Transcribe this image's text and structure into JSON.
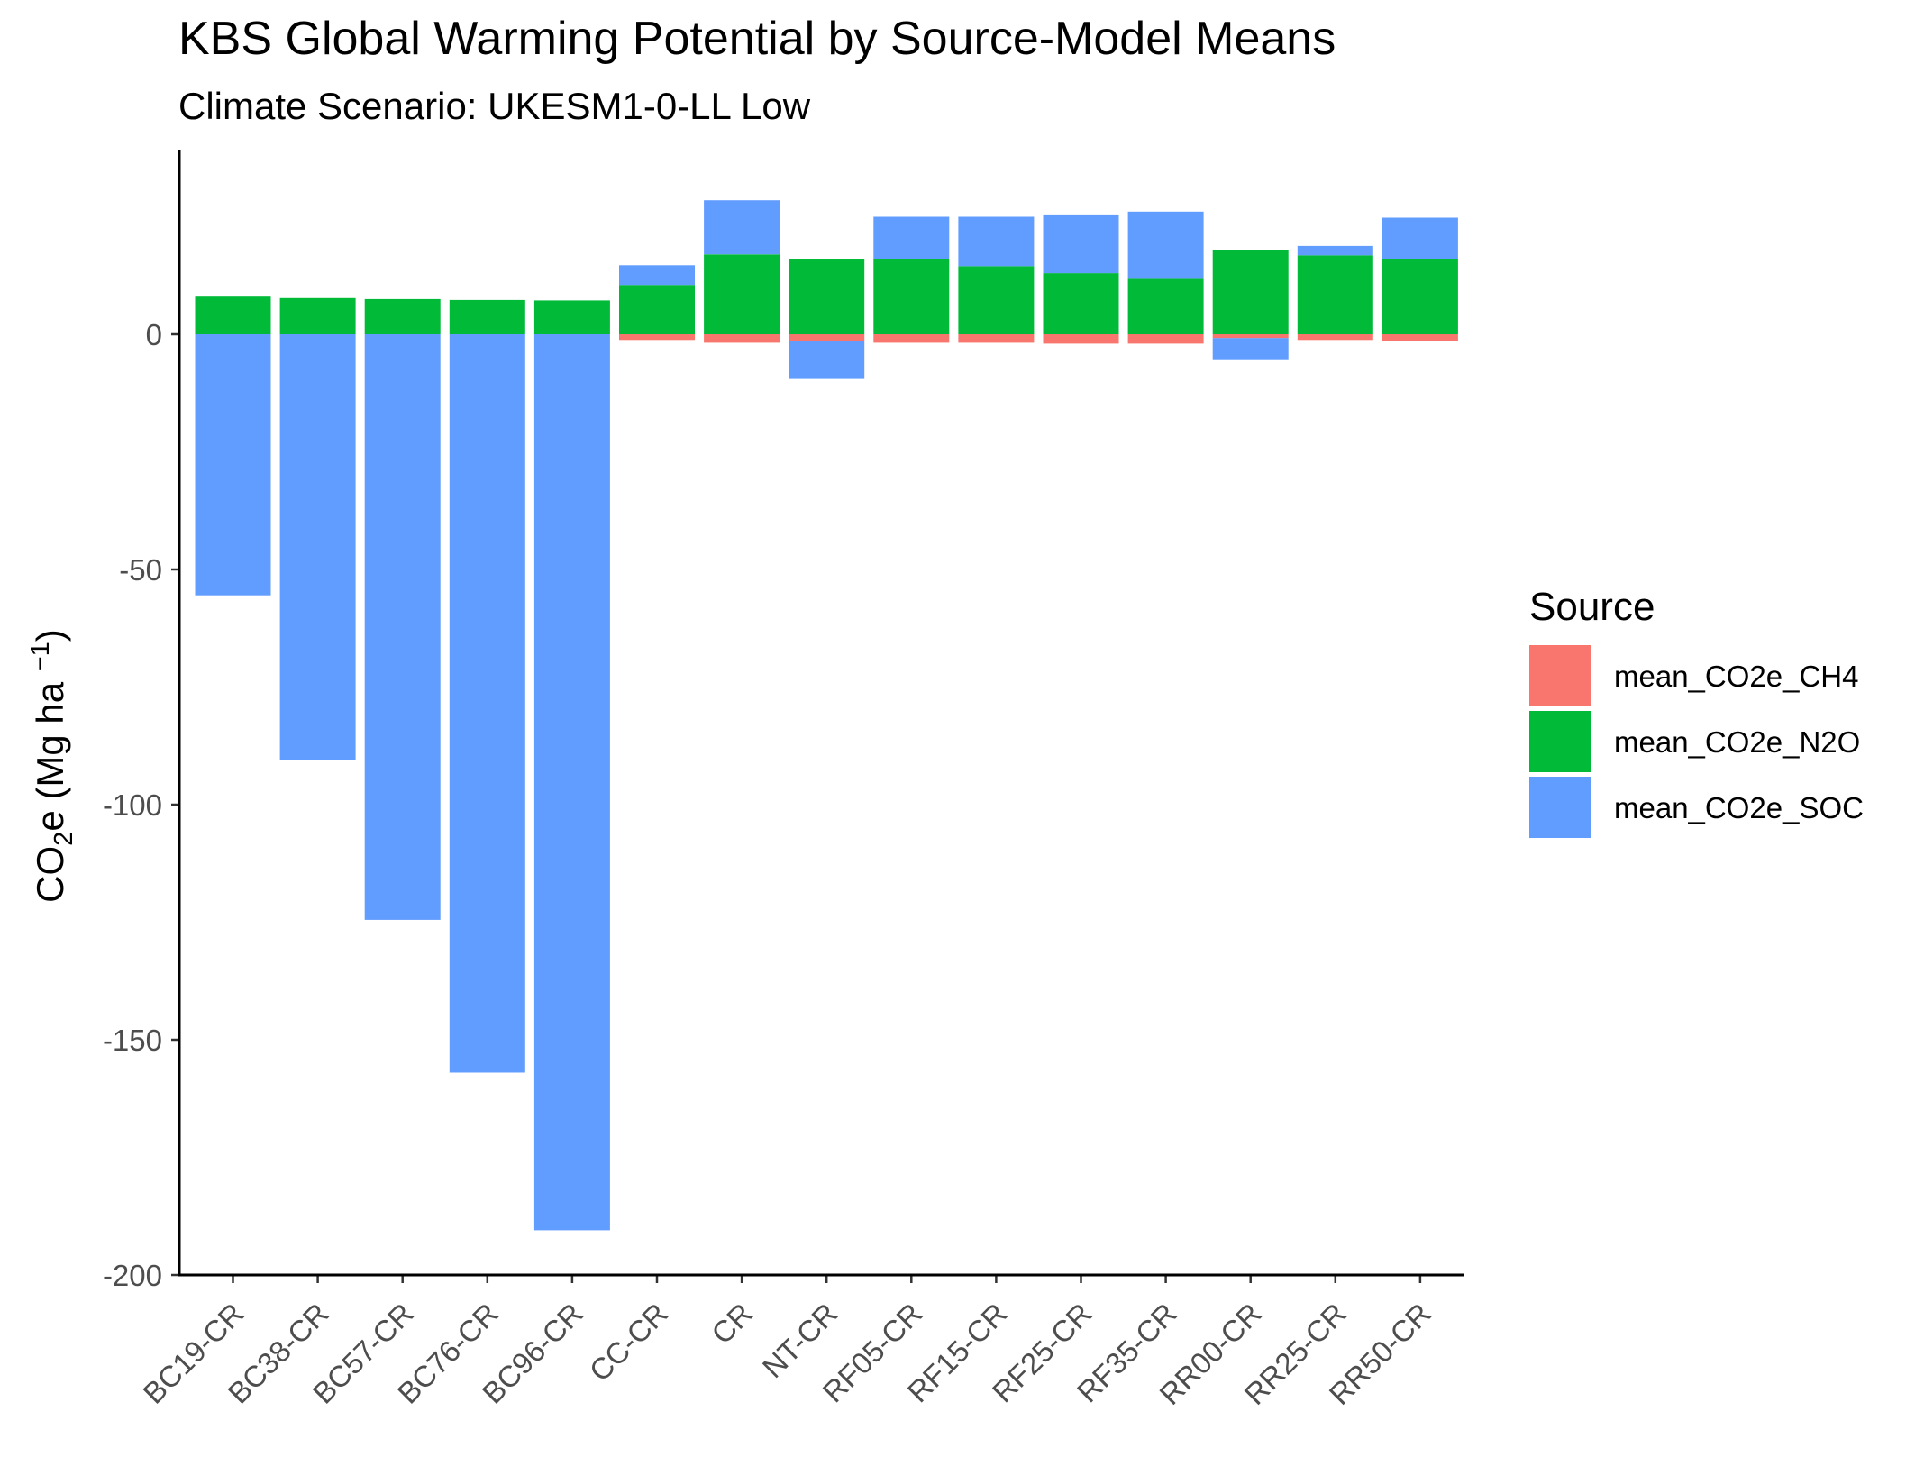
{
  "chart_data": {
    "type": "bar",
    "stacked": true,
    "title": "KBS  Global Warming Potential by Source-Model Means",
    "subtitle": "Climate Scenario: UKESM1-0-LL Low",
    "xlabel": "",
    "ylabel": {
      "prefix": "CO",
      "sub": "2",
      "middle": "e (Mg ha ",
      "sup": "−1",
      "suffix": ")"
    },
    "ylim": [
      -200,
      35
    ],
    "yticks": [
      0,
      -50,
      -100,
      -150,
      -200
    ],
    "ytick_labels": [
      "0",
      "-50",
      "-100",
      "-150",
      "-200"
    ],
    "grid": false,
    "categories": [
      "BC19-CR",
      "BC38-CR",
      "BC57-CR",
      "BC76-CR",
      "BC96-CR",
      "CC-CR",
      "CR",
      "NT-CR",
      "RF05-CR",
      "RF15-CR",
      "RF25-CR",
      "RF35-CR",
      "RR00-CR",
      "RR25-CR",
      "RR50-CR"
    ],
    "series": [
      {
        "name": "mean_CO2e_CH4",
        "color": "#F8766D",
        "values": [
          0,
          0,
          0,
          0,
          0,
          -1.2,
          -1.8,
          -1.5,
          -1.8,
          -1.8,
          -2.0,
          -2.0,
          -0.8,
          -1.2,
          -1.5
        ]
      },
      {
        "name": "mean_CO2e_N2O",
        "color": "#00BA38",
        "values": [
          8.0,
          7.7,
          7.5,
          7.3,
          7.2,
          10.5,
          17.0,
          16.0,
          16.0,
          14.5,
          13.0,
          11.8,
          18.0,
          16.8,
          16.0
        ]
      },
      {
        "name": "mean_CO2e_SOC",
        "color": "#619CFF",
        "values": [
          -55.5,
          -90.5,
          -124.5,
          -157.0,
          -190.5,
          4.2,
          11.5,
          -8.0,
          9.0,
          10.5,
          12.3,
          14.3,
          -4.5,
          2.0,
          8.8
        ]
      }
    ],
    "legend": {
      "title": "Source",
      "position": "right"
    }
  }
}
